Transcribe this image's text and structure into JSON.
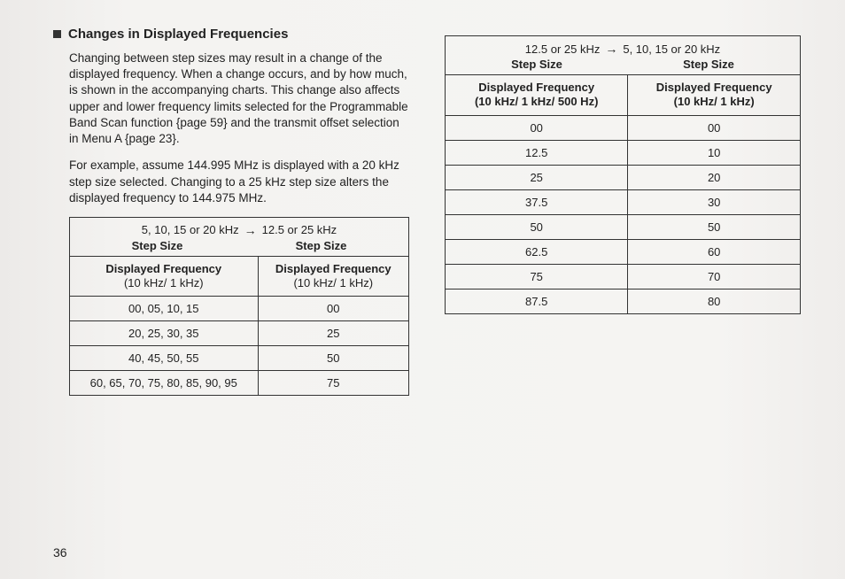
{
  "heading": "Changes in Displayed Frequencies",
  "para1": "Changing between step sizes may result in a change of the displayed frequency. When a change occurs, and by how much, is shown in the accompanying charts. This change also affects upper and lower frequency limits selected for the Programmable Band Scan function {page 59} and the transmit offset selection in Menu A {page 23}.",
  "para2": "For example, assume 144.995 MHz is displayed with a 20 kHz step size selected. Changing to a 25 kHz step size alters the displayed frequency to 144.975 MHz.",
  "table_left": {
    "top_from": "5, 10, 15 or 20 kHz",
    "top_to": "12.5 or 25 kHz",
    "step_label": "Step Size",
    "sub_left_l1": "Displayed Frequency",
    "sub_left_l2": "(10 kHz/ 1 kHz)",
    "sub_right_l1": "Displayed Frequency",
    "sub_right_l2": "(10 kHz/ 1 kHz)",
    "rows": [
      {
        "a": "00, 05, 10, 15",
        "b": "00"
      },
      {
        "a": "20, 25, 30, 35",
        "b": "25"
      },
      {
        "a": "40, 45, 50, 55",
        "b": "50"
      },
      {
        "a": "60, 65, 70, 75, 80, 85, 90, 95",
        "b": "75"
      }
    ]
  },
  "table_right": {
    "top_from": "12.5 or 25 kHz",
    "top_to": "5, 10, 15 or 20 kHz",
    "step_label": "Step Size",
    "sub_left_l1": "Displayed Frequency",
    "sub_left_l2": "(10 kHz/ 1 kHz/ 500 Hz)",
    "sub_right_l1": "Displayed Frequency",
    "sub_right_l2": "(10 kHz/ 1 kHz)",
    "rows": [
      {
        "a": "00",
        "b": "00"
      },
      {
        "a": "12.5",
        "b": "10"
      },
      {
        "a": "25",
        "b": "20"
      },
      {
        "a": "37.5",
        "b": "30"
      },
      {
        "a": "50",
        "b": "50"
      },
      {
        "a": "62.5",
        "b": "60"
      },
      {
        "a": "75",
        "b": "70"
      },
      {
        "a": "87.5",
        "b": "80"
      }
    ]
  },
  "page_number": "36",
  "arrow": "→"
}
